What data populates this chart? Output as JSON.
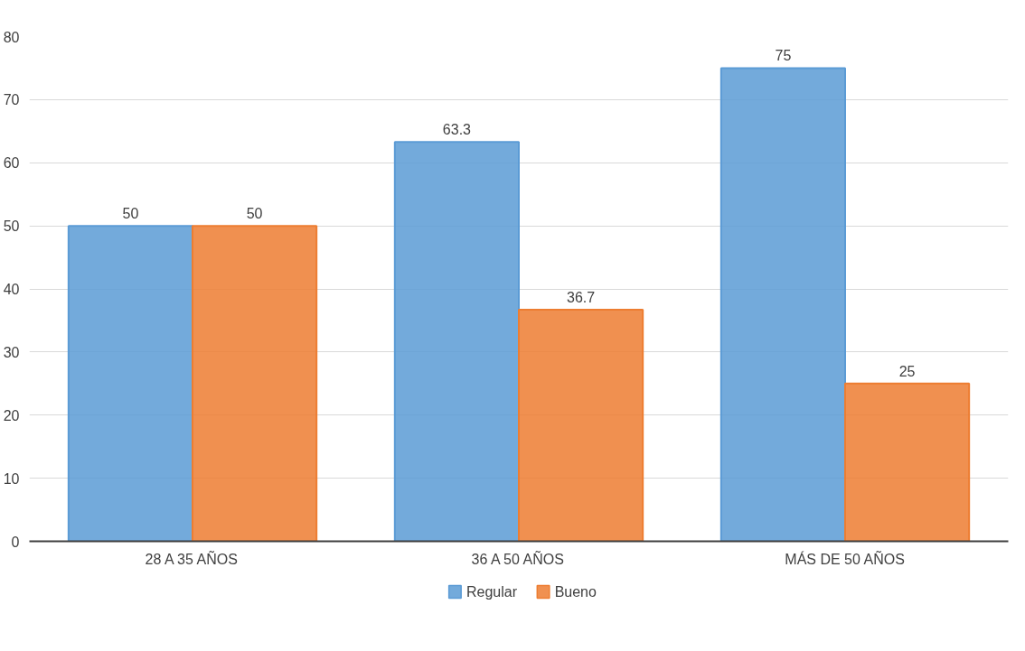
{
  "chart_data": {
    "type": "bar",
    "categories": [
      "28 A 35 AÑOS",
      "36 A 50 AÑOS",
      "MÁS DE 50 AÑOS"
    ],
    "series": [
      {
        "name": "Regular",
        "color": "#5b9bd5",
        "values": [
          50,
          63.3,
          75
        ]
      },
      {
        "name": "Bueno",
        "color": "#ed7d31",
        "values": [
          50,
          36.7,
          25
        ]
      }
    ],
    "ylim": [
      0,
      80
    ],
    "yticks": [
      0,
      10,
      20,
      30,
      40,
      50,
      60,
      70,
      80
    ],
    "grid": "y",
    "legend": "bottom",
    "data_labels": true
  }
}
